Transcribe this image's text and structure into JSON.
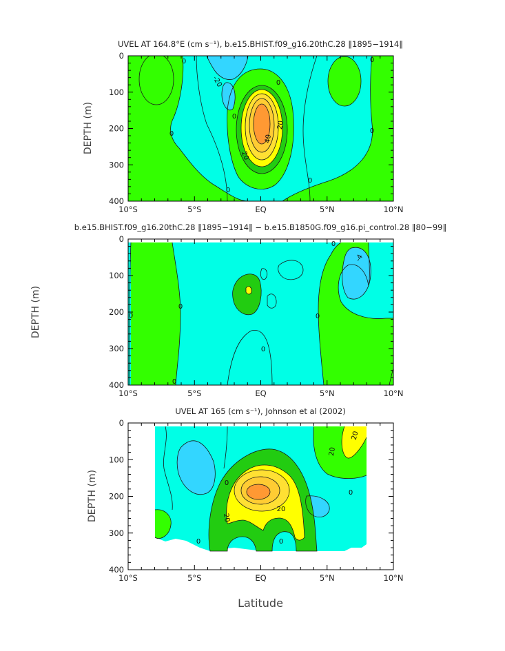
{
  "colors": {
    "cyan": "#00FFE6",
    "lightblue": "#33D6FF",
    "green": "#33FF00",
    "darkgreen": "#22CC11",
    "yellow": "#FFFF00",
    "orange_light": "#FFCC33",
    "orange": "#FF9933",
    "contour": "#1a1a1a"
  },
  "chart_data": [
    {
      "type": "heatmap",
      "title": "UVEL AT 164.8°E (cm s⁻¹), b.e15.BHIST.f09_g16.20thC.28 ‖1895−1914‖",
      "xlabel": "",
      "ylabel": "DEPTH (m)",
      "xlim": [
        -10,
        10
      ],
      "ylim": [
        400,
        0
      ],
      "x_ticklabels": [
        "10°S",
        "5°S",
        "EQ",
        "5°N",
        "10°N"
      ],
      "y_ticklabels": [
        "0",
        "100",
        "200",
        "300",
        "400"
      ],
      "contour_labels": [
        "0",
        "-20",
        "0",
        "0",
        "20",
        "40",
        "20",
        "0",
        "0",
        "0",
        "0",
        "0"
      ],
      "features": [
        {
          "kind": "eastward_core",
          "lat": 0,
          "depth": 185,
          "max_cm_s": 60
        },
        {
          "kind": "westward_surface_current",
          "lat": -1,
          "depth": 10,
          "min_cm_s": -30
        },
        {
          "kind": "westward_min",
          "lat": 6,
          "depth": 150,
          "min_cm_s": -10
        }
      ]
    },
    {
      "type": "heatmap",
      "title": "b.e15.BHIST.f09_g16.20thC.28 ‖1895−1914‖ − b.e15.B1850G.f09_g16.pi_control.28 ‖80−99‖",
      "xlabel": "",
      "ylabel": "DEPTH (m)",
      "xlim": [
        -10,
        10
      ],
      "ylim": [
        400,
        0
      ],
      "x_ticklabels": [
        "10°S",
        "5°S",
        "EQ",
        "5°N",
        "10°N"
      ],
      "y_ticklabels": [
        "0",
        "100",
        "200",
        "300",
        "400"
      ],
      "contour_labels": [
        "0",
        "0",
        "0",
        "0",
        "0",
        "0",
        "-4"
      ],
      "features": [
        {
          "kind": "difference_min",
          "lat": 7,
          "depth": 90,
          "min_cm_s": -6
        },
        {
          "kind": "difference_max",
          "lat": -1,
          "depth": 140,
          "max_cm_s": 4
        }
      ]
    },
    {
      "type": "heatmap",
      "title": "UVEL AT 165 (cm s⁻¹), Johnson et al (2002)",
      "xlabel": "Latitude",
      "ylabel": "DEPTH (m)",
      "xlim": [
        -10,
        10
      ],
      "ylim": [
        400,
        0
      ],
      "x_ticklabels": [
        "10°S",
        "5°S",
        "EQ",
        "5°N",
        "10°N"
      ],
      "y_ticklabels": [
        "0",
        "100",
        "200",
        "300",
        "400"
      ],
      "contour_labels": [
        "20",
        "20",
        "0",
        "0",
        "20",
        "20",
        "0",
        "0"
      ],
      "features": [
        {
          "kind": "eastward_core",
          "lat": 0,
          "depth": 190,
          "max_cm_s": 60
        },
        {
          "kind": "eastward_jet",
          "lat": 5.5,
          "depth": 60,
          "max_cm_s": 30
        }
      ]
    }
  ]
}
